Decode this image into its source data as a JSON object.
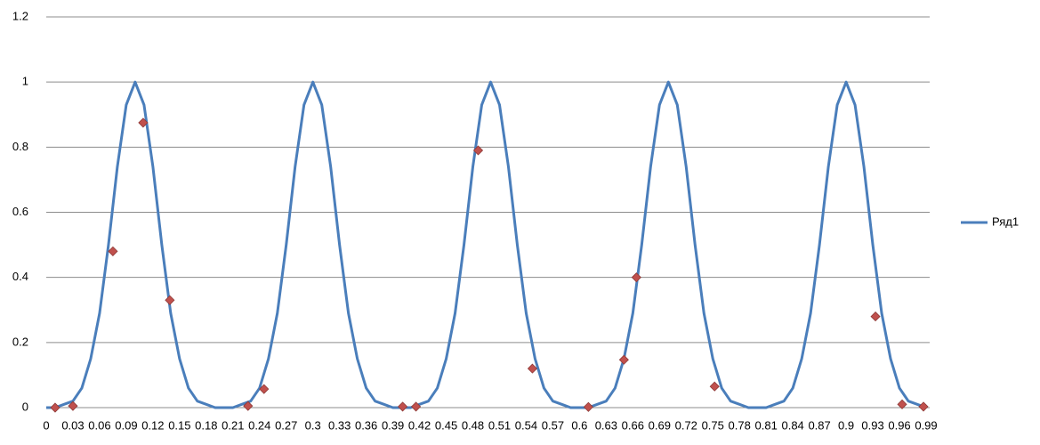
{
  "chart_data": {
    "type": "line",
    "categories": [
      "0",
      null,
      null,
      "0.03",
      null,
      null,
      "0.06",
      null,
      null,
      "0.09",
      null,
      null,
      "0.12",
      null,
      null,
      "0.15",
      null,
      null,
      "0.18",
      null,
      null,
      "0.21",
      null,
      null,
      "0.24",
      null,
      null,
      "0.27",
      null,
      null,
      "0.3",
      null,
      null,
      "0.33",
      null,
      null,
      "0.36",
      null,
      null,
      "0.39",
      null,
      null,
      "0.42",
      null,
      null,
      "0.45",
      null,
      null,
      "0.48",
      null,
      null,
      "0.51",
      null,
      null,
      "0.54",
      null,
      null,
      "0.57",
      null,
      null,
      "0.6",
      null,
      null,
      "0.63",
      null,
      null,
      "0.66",
      null,
      null,
      "0.69",
      null,
      null,
      "0.72",
      null,
      null,
      "0.75",
      null,
      null,
      "0.78",
      null,
      null,
      "0.81",
      null,
      null,
      "0.84",
      null,
      null,
      "0.87",
      null,
      null,
      "0.9",
      null,
      null,
      "0.93",
      null,
      null,
      "0.96",
      null,
      null,
      "0.99"
    ],
    "xlim": [
      0,
      0.99
    ],
    "series": [
      {
        "name": "Ряд1",
        "color": "#4a7ebb",
        "values": [
          0,
          0,
          0.01,
          0.02,
          0.06,
          0.15,
          0.29,
          0.5,
          0.74,
          0.93,
          1,
          0.93,
          0.74,
          0.5,
          0.29,
          0.15,
          0.06,
          0.02,
          0.01,
          0,
          0,
          0,
          0.01,
          0.02,
          0.06,
          0.15,
          0.29,
          0.5,
          0.74,
          0.93,
          1,
          0.93,
          0.74,
          0.5,
          0.29,
          0.15,
          0.06,
          0.02,
          0.01,
          0,
          0,
          0,
          0.01,
          0.02,
          0.06,
          0.15,
          0.29,
          0.5,
          0.74,
          0.93,
          1,
          0.93,
          0.74,
          0.5,
          0.29,
          0.15,
          0.06,
          0.02,
          0.01,
          0,
          0,
          0,
          0.01,
          0.02,
          0.06,
          0.15,
          0.29,
          0.5,
          0.74,
          0.93,
          1,
          0.93,
          0.74,
          0.5,
          0.29,
          0.15,
          0.06,
          0.02,
          0.01,
          0,
          0,
          0,
          0.01,
          0.02,
          0.06,
          0.15,
          0.29,
          0.5,
          0.74,
          0.93,
          1,
          0.93,
          0.74,
          0.5,
          0.29,
          0.15,
          0.06,
          0.02,
          0.01,
          0
        ]
      }
    ],
    "scatter": {
      "color": "#c0504d",
      "x": [
        0.01,
        0.03,
        0.075,
        0.109,
        0.139,
        0.227,
        0.245,
        0.401,
        0.416,
        0.486,
        0.547,
        0.61,
        0.65,
        0.664,
        0.752,
        0.933,
        0.963,
        0.987
      ],
      "values": [
        0,
        0.005,
        0.48,
        0.875,
        0.33,
        0.005,
        0.057,
        0.003,
        0.003,
        0.79,
        0.12,
        0.002,
        0.147,
        0.4,
        0.065,
        0.28,
        0.01,
        0.003
      ]
    },
    "ylim": [
      0,
      1.2
    ],
    "yticks": [
      0,
      0.2,
      0.4,
      0.6,
      0.8,
      1,
      1.2
    ],
    "grid": true,
    "legend": "right"
  }
}
